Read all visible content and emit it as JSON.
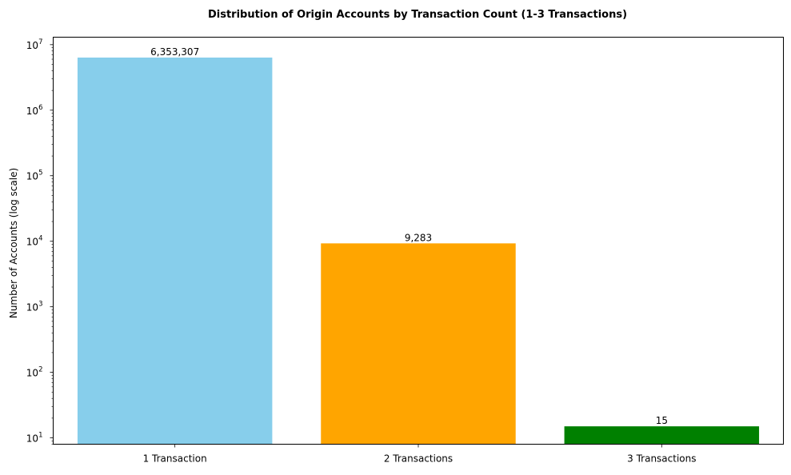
{
  "chart_data": {
    "type": "bar",
    "title": "Distribution of Origin Accounts by Transaction Count (1-3 Transactions)",
    "xlabel": "",
    "ylabel": "Number of Accounts (log scale)",
    "yscale": "log",
    "ylim": [
      8,
      13000000
    ],
    "y_tick_values": [
      10,
      100,
      1000,
      10000,
      100000,
      1000000,
      10000000
    ],
    "y_tick_labels": [
      {
        "base": "10",
        "exp": "1"
      },
      {
        "base": "10",
        "exp": "2"
      },
      {
        "base": "10",
        "exp": "3"
      },
      {
        "base": "10",
        "exp": "4"
      },
      {
        "base": "10",
        "exp": "5"
      },
      {
        "base": "10",
        "exp": "6"
      },
      {
        "base": "10",
        "exp": "7"
      }
    ],
    "categories": [
      "1 Transaction",
      "2 Transactions",
      "3 Transactions"
    ],
    "values": [
      6353307,
      9283,
      15
    ],
    "data_labels": [
      "6,353,307",
      "9,283",
      "15"
    ],
    "colors": [
      "#87ceeb",
      "#ffa500",
      "#008000"
    ],
    "grid": false,
    "legend": "none"
  }
}
